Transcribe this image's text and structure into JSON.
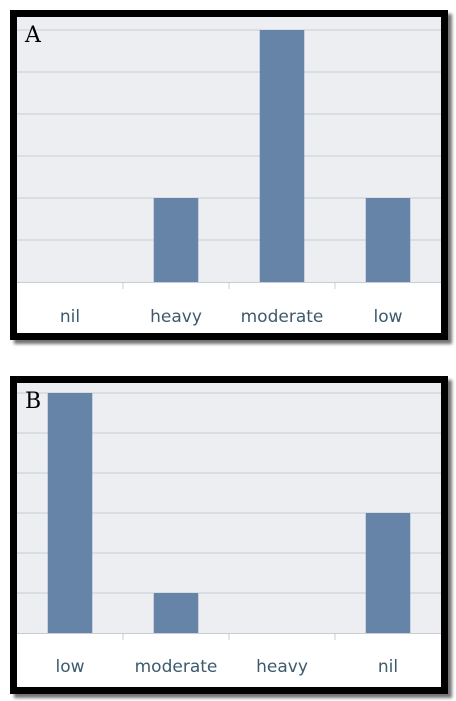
{
  "panels": [
    {
      "label": "A",
      "bg_color": "#eceef1",
      "grid_color": "#c9ccd1",
      "bar_color": "#6684a8",
      "chart_data": {
        "type": "bar",
        "categories": [
          "nil",
          "heavy",
          "moderate",
          "low"
        ],
        "values": [
          0,
          2,
          6,
          2
        ],
        "title": "",
        "xlabel": "",
        "ylabel": "",
        "ylim": [
          0,
          6
        ],
        "grid": true,
        "legend": "none"
      }
    },
    {
      "label": "B",
      "bg_color": "#eceef1",
      "grid_color": "#c9ccd1",
      "bar_color": "#6684a8",
      "chart_data": {
        "type": "bar",
        "categories": [
          "low",
          "moderate",
          "heavy",
          "nil"
        ],
        "values": [
          6,
          1,
          0,
          3
        ],
        "title": "",
        "xlabel": "",
        "ylabel": "",
        "ylim": [
          0,
          6
        ],
        "grid": true,
        "legend": "none"
      }
    }
  ]
}
